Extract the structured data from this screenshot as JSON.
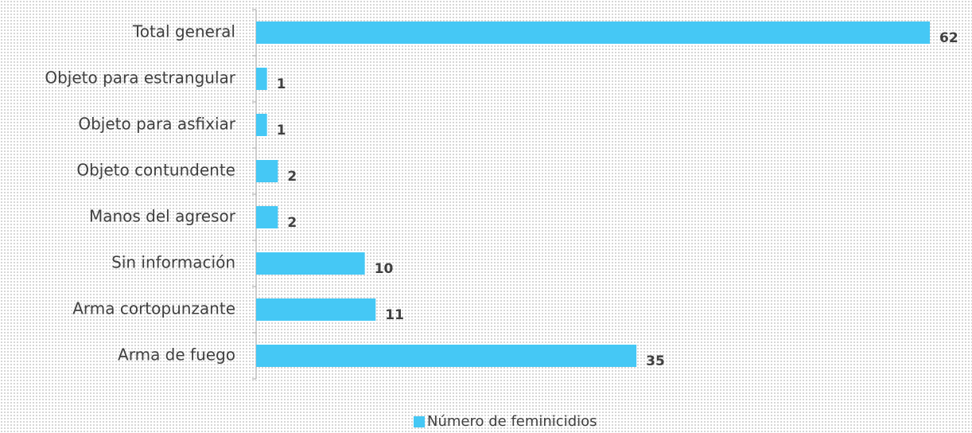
{
  "chart_data": {
    "type": "bar",
    "orientation": "horizontal",
    "categories": [
      "Total general",
      "Objeto para estrangular",
      "Objeto para asfixiar",
      "Objeto contundente",
      "Manos del agresor",
      "Sin información",
      "Arma cortopunzante",
      "Arma de fuego"
    ],
    "series": [
      {
        "name": "Número de feminicidios",
        "color": "#45c8f5",
        "values": [
          62,
          1,
          1,
          2,
          2,
          10,
          11,
          35
        ]
      }
    ],
    "xlim": [
      0,
      62
    ],
    "legend": "bottom"
  }
}
